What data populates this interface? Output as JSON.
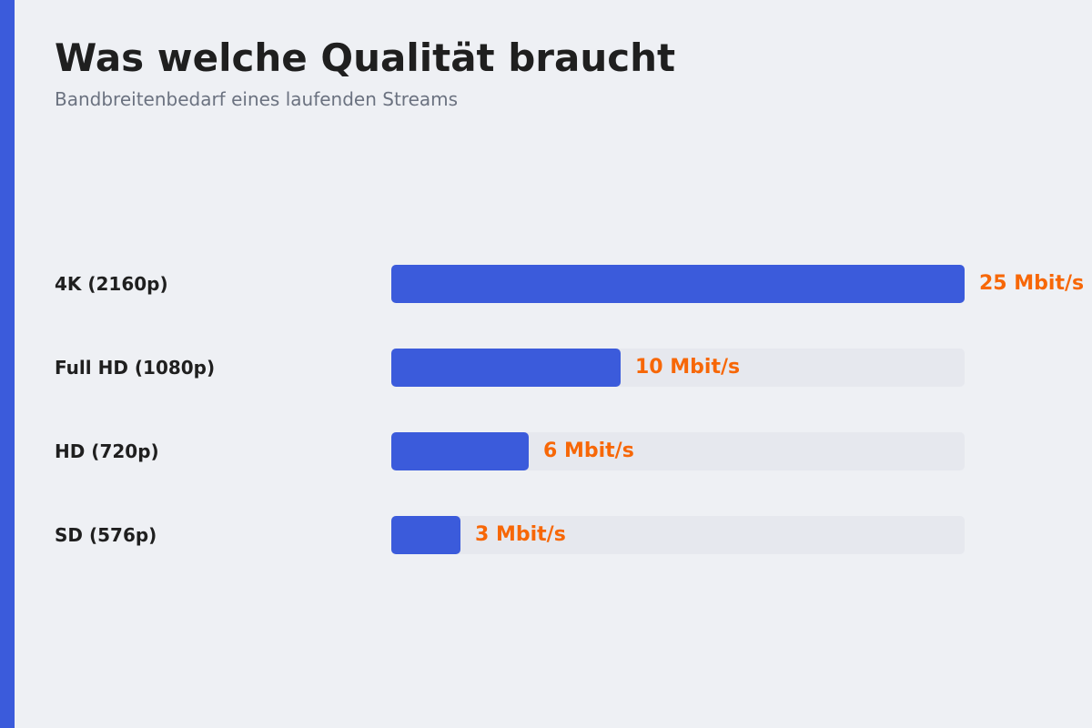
{
  "page": {
    "title": "Was welche Qualität braucht",
    "subtitle": "Bandbreitenbedarf eines laufenden Streams"
  },
  "colors": {
    "accent": "#3b5bdb",
    "value_label": "#f76707",
    "track": "#e6e8ee",
    "background": "#eef0f4"
  },
  "chart_data": {
    "type": "bar",
    "orientation": "horizontal",
    "title": "Was welche Qualität braucht",
    "subtitle": "Bandbreitenbedarf eines laufenden Streams",
    "categories": [
      "4K (2160p)",
      "Full HD (1080p)",
      "HD (720p)",
      "SD (576p)"
    ],
    "values": [
      25,
      10,
      6,
      3
    ],
    "value_labels": [
      "25 Mbit/s",
      "10 Mbit/s",
      "6 Mbit/s",
      "3 Mbit/s"
    ],
    "unit": "Mbit/s",
    "xlim": [
      0,
      25
    ],
    "grid": false,
    "legend": "none"
  }
}
